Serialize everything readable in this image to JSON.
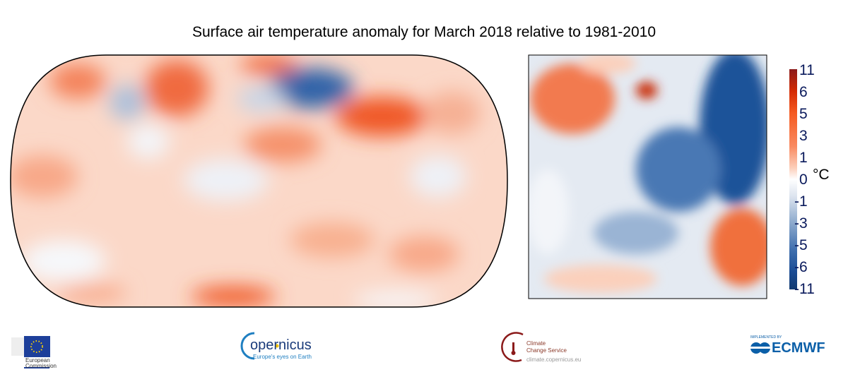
{
  "title": "Surface air temperature anomaly for March 2018 relative to 1981-2010",
  "colorbar": {
    "unit": "°C",
    "tick_labels": [
      "11",
      "6",
      "5",
      "3",
      "1",
      "0",
      "-1",
      "-3",
      "-5",
      "-6",
      "-11"
    ],
    "colors": [
      "#8b1a1a",
      "#b22000",
      "#e03000",
      "#f55a20",
      "#f98a60",
      "#fcc0a8",
      "#fdeee6",
      "#ffffff",
      "#e8edf3",
      "#b8c8dc",
      "#7a9cc4",
      "#3f6fae",
      "#1a4c94",
      "#123a70"
    ]
  },
  "maps": {
    "world": "global anomaly map",
    "europe": "European anomaly map"
  },
  "logos": {
    "european_commission": "European Commission",
    "copernicus": "opernicus",
    "copernicus_tagline": "Europe's eyes on Earth",
    "climate_change_service_1": "Climate",
    "climate_change_service_2": "Change Service",
    "climate_url": "climate.copernicus.eu",
    "ecmwf_implemented": "IMPLEMENTED BY",
    "ecmwf": "ECMWF"
  }
}
